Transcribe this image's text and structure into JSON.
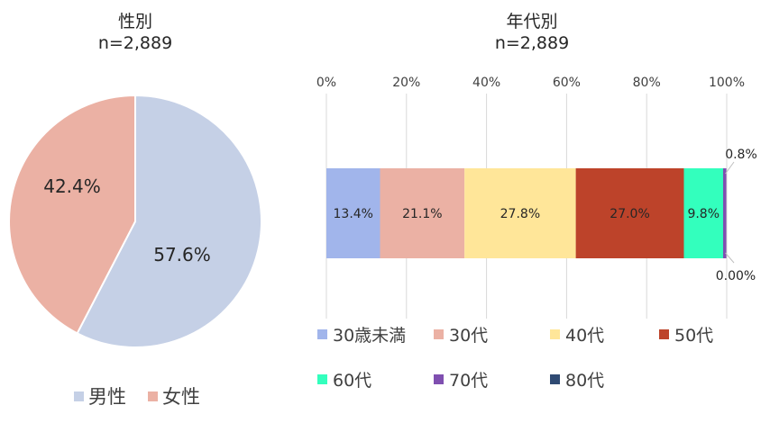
{
  "colors": {
    "male": "#C5D0E6",
    "female": "#EBB1A4",
    "age_under30": "#A1B5EB",
    "age_30s": "#EBB1A4",
    "age_40s": "#FFE699",
    "age_50s": "#BD432A",
    "age_60s": "#33FFBD",
    "age_70s": "#7F4FB0",
    "age_80s": "#2F4A73",
    "gridline": "#D9D9D9"
  },
  "chart_data": [
    {
      "type": "pie",
      "title": "性別",
      "subtitle": "n=2,889",
      "categories": [
        "男性",
        "女性"
      ],
      "values": [
        57.6,
        42.4
      ],
      "data_labels": [
        "57.6%",
        "42.4%"
      ],
      "legend": [
        "男性",
        "女性"
      ],
      "legend_placement": "bottom"
    },
    {
      "type": "bar",
      "orientation": "horizontal-stacked-100",
      "title": "年代別",
      "subtitle": "n=2,889",
      "xlim": [
        0,
        100
      ],
      "xticks": [
        "0%",
        "20%",
        "40%",
        "60%",
        "80%",
        "100%"
      ],
      "grid": true,
      "series": [
        {
          "name": "30歳未満",
          "values": [
            13.4
          ],
          "label": "13.4%"
        },
        {
          "name": "30代",
          "values": [
            21.1
          ],
          "label": "21.1%"
        },
        {
          "name": "40代",
          "values": [
            27.8
          ],
          "label": "27.8%"
        },
        {
          "name": "50代",
          "values": [
            27.0
          ],
          "label": "27.0%"
        },
        {
          "name": "60代",
          "values": [
            9.8
          ],
          "label": "9.8%"
        },
        {
          "name": "70代",
          "values": [
            0.8
          ],
          "label": "0.8%"
        },
        {
          "name": "80代",
          "values": [
            0.0
          ],
          "label": "0.00%"
        }
      ],
      "legend_placement": "bottom"
    }
  ]
}
